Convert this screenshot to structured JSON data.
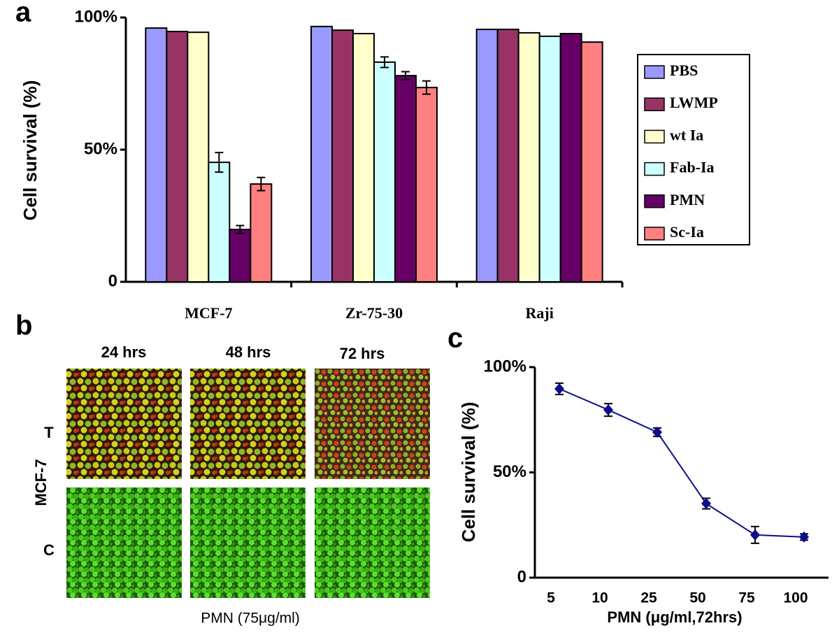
{
  "panel_labels": [
    "a",
    "b",
    "c"
  ],
  "micrographs": {
    "columns": [
      "24 hrs",
      "48 hrs",
      "72 hrs"
    ],
    "rows": [
      "T",
      "C"
    ],
    "cell_line": "MCF-7",
    "caption": "PMN (75μg/ml)"
  },
  "chart_data": [
    {
      "type": "bar",
      "ylabel": "Cell survival (%)",
      "categories": [
        "MCF-7",
        "Zr-75-30",
        "Raji"
      ],
      "ylim": [
        0,
        100
      ],
      "yticks": [
        0,
        {
          "value": 50,
          "label": "50%"
        },
        {
          "value": 100,
          "label": "100%"
        }
      ],
      "legend": "right",
      "series": [
        {
          "name": "PBS",
          "color": "#9999ff",
          "values": [
            96.0,
            96.6,
            95.5
          ],
          "errors": [
            null,
            null,
            null
          ]
        },
        {
          "name": "LWMP",
          "color": "#993366",
          "values": [
            94.7,
            95.2,
            95.5
          ],
          "errors": [
            null,
            null,
            null
          ]
        },
        {
          "name": "wt Ia",
          "color": "#ffffcc",
          "values": [
            94.4,
            93.9,
            94.2
          ],
          "errors": [
            null,
            null,
            null
          ]
        },
        {
          "name": "Fab-Ia",
          "color": "#ccffff",
          "values": [
            45.2,
            83.1,
            92.9
          ],
          "errors": [
            3.7,
            2.0,
            null
          ]
        },
        {
          "name": "PMN",
          "color": "#660066",
          "values": [
            19.8,
            78.0,
            93.9
          ],
          "errors": [
            1.5,
            1.5,
            null
          ]
        },
        {
          "name": "Sc-Ia",
          "color": "#ff8080",
          "values": [
            37.0,
            73.5,
            90.7
          ],
          "errors": [
            2.5,
            2.5,
            null
          ]
        }
      ]
    },
    {
      "type": "line",
      "ylabel": "Cell survival (%)",
      "xlabel": "PMN (μg/ml,72hrs)",
      "categories": [
        "5",
        "10",
        "25",
        "50",
        "75",
        "100"
      ],
      "ylim": [
        0,
        100
      ],
      "yticks": [
        0,
        {
          "value": 50,
          "label": "50%"
        },
        {
          "value": 100,
          "label": "100%"
        }
      ],
      "color": "#0d0d8c",
      "values": [
        89.7,
        79.7,
        69.1,
        35.2,
        20.3,
        19.3
      ],
      "errors": [
        2.7,
        3.0,
        2.0,
        2.5,
        4.0,
        1.5
      ]
    }
  ]
}
